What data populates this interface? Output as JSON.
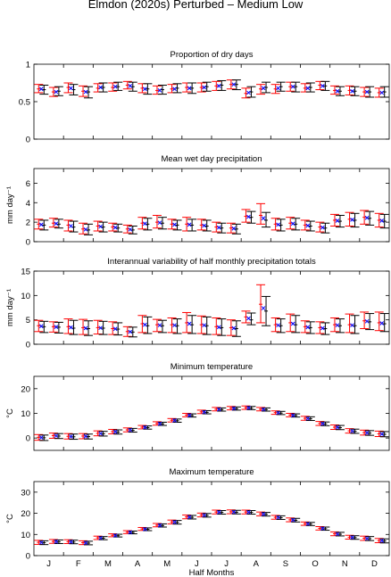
{
  "figure": {
    "title": "Elmdon (2020s) Perturbed – Medium Low",
    "xlabel": "Half Months",
    "month_labels": [
      "J",
      "F",
      "M",
      "A",
      "M",
      "J",
      "J",
      "A",
      "S",
      "O",
      "N",
      "D"
    ]
  },
  "chart_data": [
    {
      "type": "errorbar",
      "title": "Proportion of dry days",
      "ylabel": "",
      "ylim": [
        0,
        1
      ],
      "yticks": [
        "0",
        "0.5",
        "1"
      ],
      "yticks_values": [
        0,
        0.5,
        1
      ],
      "x": [
        1,
        2,
        3,
        4,
        5,
        6,
        7,
        8,
        9,
        10,
        11,
        12,
        13,
        14,
        15,
        16,
        17,
        18,
        19,
        20,
        21,
        22,
        23,
        24
      ],
      "series": [
        {
          "color": "#ff0000",
          "center": [
            0.67,
            0.63,
            0.69,
            0.64,
            0.68,
            0.69,
            0.72,
            0.68,
            0.65,
            0.67,
            0.69,
            0.69,
            0.71,
            0.73,
            0.61,
            0.67,
            0.67,
            0.7,
            0.68,
            0.72,
            0.65,
            0.65,
            0.63,
            0.62
          ],
          "low": [
            0.62,
            0.57,
            0.62,
            0.57,
            0.63,
            0.64,
            0.67,
            0.62,
            0.6,
            0.62,
            0.63,
            0.63,
            0.65,
            0.67,
            0.55,
            0.6,
            0.61,
            0.64,
            0.63,
            0.66,
            0.6,
            0.59,
            0.57,
            0.56
          ],
          "high": [
            0.73,
            0.69,
            0.75,
            0.71,
            0.74,
            0.75,
            0.77,
            0.74,
            0.71,
            0.73,
            0.75,
            0.75,
            0.77,
            0.79,
            0.68,
            0.73,
            0.73,
            0.76,
            0.74,
            0.77,
            0.71,
            0.71,
            0.69,
            0.68
          ]
        },
        {
          "color": "#000000",
          "center": [
            0.66,
            0.64,
            0.66,
            0.63,
            0.69,
            0.7,
            0.7,
            0.67,
            0.66,
            0.68,
            0.68,
            0.7,
            0.72,
            0.73,
            0.63,
            0.69,
            0.7,
            0.7,
            0.69,
            0.71,
            0.64,
            0.64,
            0.63,
            0.63
          ],
          "low": [
            0.6,
            0.58,
            0.59,
            0.55,
            0.63,
            0.65,
            0.64,
            0.6,
            0.6,
            0.62,
            0.61,
            0.64,
            0.65,
            0.66,
            0.56,
            0.62,
            0.64,
            0.63,
            0.63,
            0.65,
            0.58,
            0.58,
            0.56,
            0.56
          ],
          "high": [
            0.72,
            0.7,
            0.73,
            0.7,
            0.75,
            0.76,
            0.76,
            0.74,
            0.72,
            0.74,
            0.75,
            0.76,
            0.78,
            0.79,
            0.7,
            0.76,
            0.76,
            0.76,
            0.75,
            0.77,
            0.7,
            0.7,
            0.7,
            0.7
          ]
        },
        {
          "color": "#0000ff",
          "center": [
            0.67,
            0.63,
            0.68,
            0.63,
            0.69,
            0.7,
            0.71,
            0.67,
            0.65,
            0.67,
            0.68,
            0.69,
            0.71,
            0.73,
            0.62,
            0.68,
            0.68,
            0.7,
            0.68,
            0.71,
            0.64,
            0.64,
            0.63,
            0.62
          ]
        }
      ]
    },
    {
      "type": "errorbar",
      "title": "Mean wet day precipitation",
      "ylabel": "mm day⁻¹",
      "ylim": [
        0,
        7.5
      ],
      "yticks": [
        "0",
        "2",
        "4",
        "6"
      ],
      "yticks_values": [
        0,
        2,
        4,
        6
      ],
      "x": [
        1,
        2,
        3,
        4,
        5,
        6,
        7,
        8,
        9,
        10,
        11,
        12,
        13,
        14,
        15,
        16,
        17,
        18,
        19,
        20,
        21,
        22,
        23,
        24
      ],
      "series": [
        {
          "color": "#ff0000",
          "center": [
            1.8,
            1.9,
            1.7,
            1.3,
            1.6,
            1.5,
            1.3,
            1.9,
            2.0,
            1.8,
            1.8,
            1.7,
            1.5,
            1.4,
            2.6,
            2.7,
            1.8,
            1.9,
            1.7,
            1.5,
            2.2,
            2.3,
            2.5,
            2.2
          ],
          "low": [
            1.3,
            1.5,
            1.1,
            0.8,
            1.1,
            1.1,
            0.9,
            1.3,
            1.4,
            1.3,
            1.1,
            1.2,
            1.0,
            0.9,
            2.0,
            1.8,
            1.2,
            1.3,
            1.2,
            1.0,
            1.6,
            1.6,
            1.8,
            1.5
          ],
          "high": [
            2.3,
            2.4,
            2.2,
            1.9,
            2.1,
            1.9,
            1.7,
            2.5,
            2.7,
            2.3,
            2.5,
            2.3,
            2.0,
            1.9,
            3.3,
            3.9,
            2.4,
            2.5,
            2.2,
            2.0,
            2.8,
            3.0,
            3.2,
            2.9
          ]
        },
        {
          "color": "#000000",
          "center": [
            1.7,
            1.8,
            1.5,
            1.2,
            1.5,
            1.4,
            1.2,
            1.8,
            1.9,
            1.7,
            1.7,
            1.6,
            1.4,
            1.3,
            2.5,
            2.2,
            1.7,
            1.8,
            1.6,
            1.4,
            2.1,
            2.2,
            2.4,
            2.1
          ],
          "low": [
            1.2,
            1.4,
            1.0,
            0.7,
            1.0,
            1.0,
            0.8,
            1.2,
            1.3,
            1.2,
            1.1,
            1.1,
            0.9,
            0.8,
            1.9,
            1.5,
            1.1,
            1.2,
            1.1,
            0.9,
            1.5,
            1.5,
            1.7,
            1.4
          ],
          "high": [
            2.2,
            2.3,
            2.1,
            1.8,
            2.0,
            1.8,
            1.6,
            2.4,
            2.5,
            2.2,
            2.3,
            2.2,
            1.9,
            1.8,
            3.1,
            3.0,
            2.3,
            2.4,
            2.1,
            1.9,
            2.7,
            2.9,
            3.1,
            2.8
          ]
        },
        {
          "color": "#0000ff",
          "center": [
            1.75,
            1.85,
            1.6,
            1.25,
            1.55,
            1.45,
            1.25,
            1.85,
            1.95,
            1.75,
            1.75,
            1.65,
            1.45,
            1.35,
            2.55,
            2.4,
            1.75,
            1.85,
            1.65,
            1.45,
            2.15,
            2.25,
            2.45,
            2.15
          ]
        }
      ]
    },
    {
      "type": "errorbar",
      "title": "Interannual variability of half monthly precipitation totals",
      "ylabel": "mm day⁻¹",
      "ylim": [
        0,
        15
      ],
      "yticks": [
        "0",
        "5",
        "10",
        "15"
      ],
      "yticks_values": [
        0,
        5,
        10,
        15
      ],
      "x": [
        1,
        2,
        3,
        4,
        5,
        6,
        7,
        8,
        9,
        10,
        11,
        12,
        13,
        14,
        15,
        16,
        17,
        18,
        19,
        20,
        21,
        22,
        23,
        24
      ],
      "series": [
        {
          "color": "#ff0000",
          "center": [
            3.8,
            3.6,
            3.6,
            3.4,
            3.4,
            3.2,
            2.6,
            4.2,
            4.0,
            4.0,
            4.4,
            4.0,
            3.6,
            3.4,
            5.6,
            8.2,
            4.0,
            4.4,
            3.6,
            3.4,
            4.0,
            4.0,
            4.8,
            4.4
          ],
          "low": [
            2.6,
            2.5,
            2.2,
            2.0,
            2.1,
            2.0,
            1.6,
            2.4,
            2.6,
            2.4,
            2.4,
            2.2,
            2.0,
            1.8,
            4.4,
            4.4,
            2.6,
            2.6,
            2.4,
            2.2,
            2.6,
            2.4,
            3.2,
            2.8
          ],
          "high": [
            4.9,
            4.6,
            5.2,
            5.1,
            4.9,
            4.6,
            3.6,
            5.9,
            5.1,
            5.4,
            6.5,
            5.8,
            5.4,
            5.0,
            6.8,
            12.2,
            5.4,
            6.2,
            4.8,
            4.6,
            5.4,
            6.2,
            6.6,
            6.6
          ]
        },
        {
          "color": "#000000",
          "center": [
            3.6,
            3.5,
            3.3,
            3.2,
            3.3,
            3.1,
            2.5,
            3.8,
            3.8,
            3.8,
            4.0,
            3.8,
            3.4,
            3.2,
            5.0,
            6.8,
            3.8,
            4.0,
            3.4,
            3.2,
            3.8,
            3.8,
            4.6,
            4.2
          ],
          "low": [
            2.4,
            2.3,
            2.0,
            1.8,
            2.0,
            1.9,
            1.5,
            2.2,
            2.4,
            2.2,
            2.2,
            2.0,
            1.8,
            1.6,
            4.0,
            3.8,
            2.4,
            2.4,
            2.2,
            2.0,
            2.4,
            2.2,
            3.0,
            2.6
          ],
          "high": [
            4.7,
            4.5,
            4.9,
            4.8,
            4.7,
            4.4,
            3.5,
            5.6,
            4.9,
            5.2,
            5.9,
            5.6,
            5.2,
            4.8,
            6.4,
            9.8,
            5.2,
            5.9,
            4.6,
            4.4,
            5.2,
            5.9,
            6.3,
            6.3
          ]
        },
        {
          "color": "#0000ff",
          "center": [
            3.7,
            3.55,
            3.45,
            3.3,
            3.35,
            3.15,
            2.55,
            4.0,
            3.9,
            3.9,
            4.2,
            3.9,
            3.5,
            3.3,
            5.3,
            7.4,
            3.9,
            4.2,
            3.5,
            3.3,
            3.9,
            3.9,
            4.7,
            4.3
          ]
        }
      ]
    },
    {
      "type": "errorbar",
      "title": "Minimum temperature",
      "ylabel": "°C",
      "ylim": [
        -5,
        25
      ],
      "yticks": [
        "0",
        "10",
        "20"
      ],
      "yticks_values": [
        0,
        10,
        20
      ],
      "x": [
        1,
        2,
        3,
        4,
        5,
        6,
        7,
        8,
        9,
        10,
        11,
        12,
        13,
        14,
        15,
        16,
        17,
        18,
        19,
        20,
        21,
        22,
        23,
        24
      ],
      "series": [
        {
          "color": "#ff0000",
          "center": [
            0.3,
            1.0,
            0.7,
            0.8,
            1.9,
            2.6,
            3.3,
            4.4,
            5.9,
            7.2,
            9.3,
            10.6,
            11.7,
            12.1,
            12.3,
            11.7,
            10.3,
            9.3,
            8.0,
            5.9,
            4.4,
            2.9,
            2.2,
            1.7
          ],
          "low": [
            -0.9,
            -0.1,
            -0.4,
            -0.3,
            0.9,
            1.7,
            2.5,
            3.7,
            5.2,
            6.5,
            8.6,
            9.9,
            11.0,
            11.4,
            11.6,
            11.0,
            9.6,
            8.6,
            7.2,
            5.1,
            3.5,
            2.0,
            1.2,
            0.6
          ],
          "high": [
            1.4,
            2.0,
            1.8,
            1.8,
            2.9,
            3.5,
            4.1,
            5.1,
            6.6,
            7.9,
            10.0,
            11.3,
            12.4,
            12.8,
            13.0,
            12.4,
            11.0,
            10.0,
            8.8,
            6.7,
            5.3,
            3.8,
            3.2,
            2.8
          ]
        },
        {
          "color": "#000000",
          "center": [
            0.1,
            0.8,
            0.5,
            0.6,
            1.7,
            2.4,
            3.1,
            4.2,
            5.7,
            7.0,
            9.1,
            10.4,
            11.5,
            11.9,
            12.1,
            11.5,
            10.1,
            9.1,
            7.8,
            5.7,
            4.2,
            2.7,
            2.0,
            1.5
          ],
          "low": [
            -1.0,
            -0.2,
            -0.5,
            -0.4,
            0.8,
            1.6,
            2.4,
            3.6,
            5.1,
            6.4,
            8.5,
            9.8,
            10.9,
            11.3,
            11.5,
            10.9,
            9.5,
            8.5,
            7.1,
            5.0,
            3.4,
            1.9,
            1.1,
            0.5
          ],
          "high": [
            1.2,
            1.8,
            1.6,
            1.6,
            2.7,
            3.3,
            3.9,
            4.9,
            6.4,
            7.7,
            9.8,
            11.1,
            12.2,
            12.6,
            12.8,
            12.2,
            10.8,
            9.8,
            8.6,
            6.5,
            5.1,
            3.6,
            3.0,
            2.6
          ]
        },
        {
          "color": "#0000ff",
          "center": [
            0.2,
            0.9,
            0.6,
            0.7,
            1.8,
            2.5,
            3.2,
            4.3,
            5.8,
            7.1,
            9.2,
            10.5,
            11.6,
            12.0,
            12.2,
            11.6,
            10.2,
            9.2,
            7.9,
            5.8,
            4.3,
            2.8,
            2.1,
            1.6
          ]
        }
      ]
    },
    {
      "type": "errorbar",
      "title": "Maximum temperature",
      "ylabel": "°C",
      "ylim": [
        0,
        35
      ],
      "yticks": [
        "0",
        "10",
        "20",
        "30"
      ],
      "yticks_values": [
        0,
        10,
        20,
        30
      ],
      "x": [
        1,
        2,
        3,
        4,
        5,
        6,
        7,
        8,
        9,
        10,
        11,
        12,
        13,
        14,
        15,
        16,
        17,
        18,
        19,
        20,
        21,
        22,
        23,
        24
      ],
      "series": [
        {
          "color": "#ff0000",
          "center": [
            6.3,
            6.7,
            6.6,
            6.1,
            8.4,
            9.6,
            11.1,
            12.6,
            14.4,
            15.9,
            18.3,
            19.2,
            20.6,
            20.7,
            20.6,
            19.7,
            18.1,
            16.9,
            15.1,
            12.9,
            10.3,
            8.7,
            8.2,
            7.1
          ],
          "low": [
            5.3,
            5.8,
            5.7,
            5.2,
            7.6,
            8.9,
            10.4,
            11.9,
            13.6,
            15.0,
            17.4,
            18.3,
            19.7,
            19.8,
            19.7,
            18.8,
            17.2,
            16.0,
            14.3,
            12.1,
            9.4,
            7.8,
            7.2,
            6.1
          ],
          "high": [
            7.2,
            7.6,
            7.5,
            7.0,
            9.2,
            10.3,
            11.8,
            13.3,
            15.2,
            16.8,
            19.2,
            20.1,
            21.5,
            21.6,
            21.5,
            20.6,
            19.0,
            17.8,
            15.9,
            13.7,
            11.2,
            9.6,
            9.2,
            8.1
          ]
        },
        {
          "color": "#000000",
          "center": [
            6.1,
            6.5,
            6.4,
            5.9,
            8.2,
            9.4,
            10.9,
            12.4,
            14.2,
            15.7,
            18.1,
            19.0,
            20.4,
            20.5,
            20.4,
            19.5,
            17.9,
            16.7,
            14.9,
            12.7,
            10.1,
            8.5,
            8.0,
            6.9
          ],
          "low": [
            5.2,
            5.7,
            5.6,
            5.1,
            7.5,
            8.8,
            10.3,
            11.8,
            13.5,
            14.9,
            17.3,
            18.2,
            19.6,
            19.7,
            19.6,
            18.7,
            17.1,
            15.9,
            14.2,
            12.0,
            9.3,
            7.7,
            7.1,
            6.0
          ],
          "high": [
            7.0,
            7.4,
            7.3,
            6.8,
            9.0,
            10.1,
            11.6,
            13.1,
            15.0,
            16.6,
            19.0,
            19.9,
            21.3,
            21.4,
            21.3,
            20.4,
            18.8,
            17.6,
            15.7,
            13.5,
            11.0,
            9.4,
            9.0,
            7.9
          ]
        },
        {
          "color": "#0000ff",
          "center": [
            6.2,
            6.6,
            6.5,
            6.0,
            8.3,
            9.5,
            11.0,
            12.5,
            14.3,
            15.8,
            18.2,
            19.1,
            20.5,
            20.6,
            20.5,
            19.6,
            18.0,
            16.8,
            15.0,
            12.8,
            10.2,
            8.6,
            8.1,
            7.0
          ]
        }
      ]
    }
  ]
}
